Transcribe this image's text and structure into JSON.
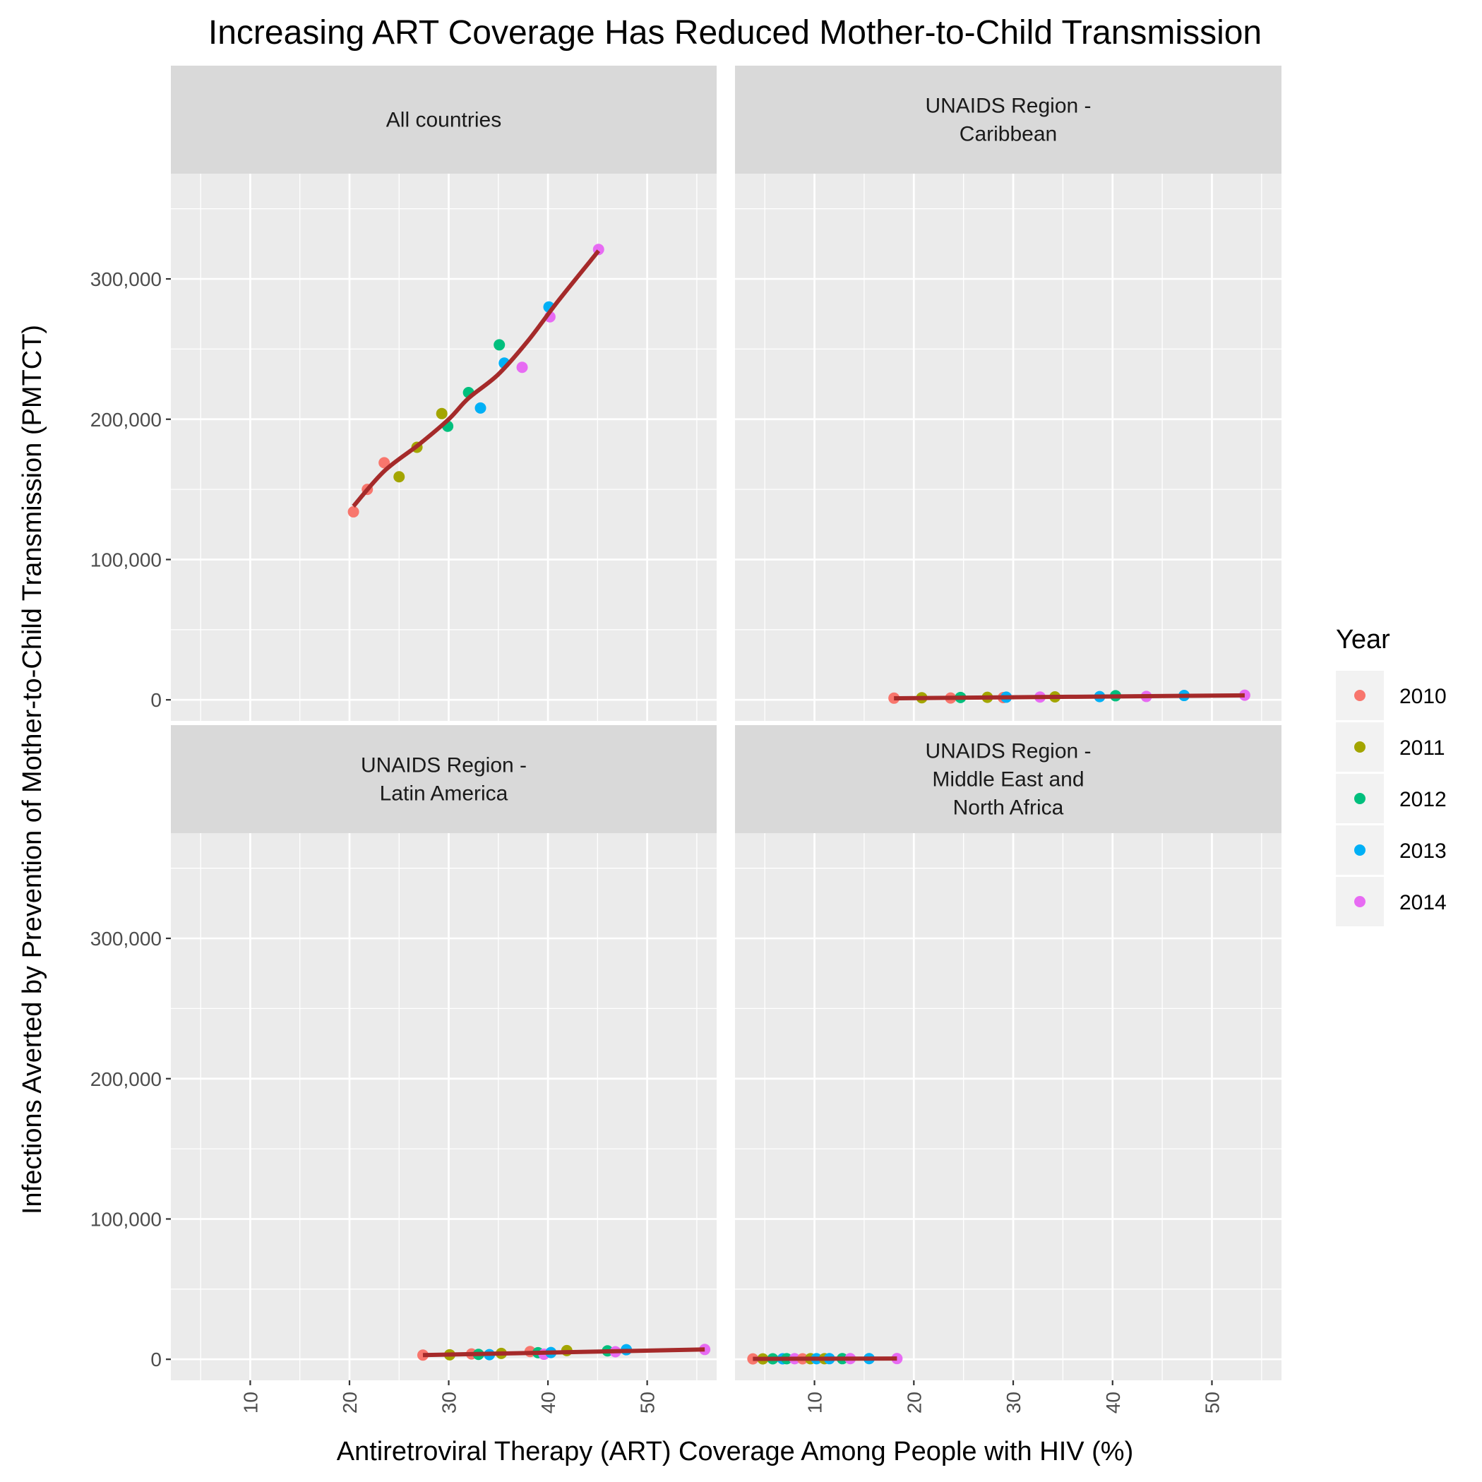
{
  "chart_data": {
    "type": "scatter",
    "title": "Increasing ART Coverage Has Reduced Mother-to-Child Transmission",
    "xlabel": "Antiretroviral Therapy (ART) Coverage Among People with HIV (%)",
    "ylabel": "Infections Averted by Prevention of Mother-to-Child Transmission (PMTCT)",
    "xlim": [
      2,
      57
    ],
    "ylim": [
      -15000,
      375000
    ],
    "x_ticks": [
      10,
      20,
      30,
      40,
      50
    ],
    "y_ticks": [
      0,
      100000,
      200000,
      300000
    ],
    "y_tick_labels": [
      "0",
      "100,000",
      "200,000",
      "300,000"
    ],
    "grid": true,
    "legend": {
      "title": "Year",
      "position": "right",
      "entries": [
        {
          "label": "2010",
          "color": "#F8766D"
        },
        {
          "label": "2011",
          "color": "#A3A500"
        },
        {
          "label": "2012",
          "color": "#00BF7D"
        },
        {
          "label": "2013",
          "color": "#00B0F6"
        },
        {
          "label": "2014",
          "color": "#E76BF3"
        }
      ]
    },
    "trend_color": "#A52A2A",
    "panels": [
      {
        "label": "All countries",
        "points": [
          {
            "year": "2010",
            "x": 20.4,
            "y": 134000
          },
          {
            "year": "2010",
            "x": 21.8,
            "y": 150000
          },
          {
            "year": "2010",
            "x": 23.5,
            "y": 169000
          },
          {
            "year": "2011",
            "x": 25.0,
            "y": 159000
          },
          {
            "year": "2011",
            "x": 26.8,
            "y": 180000
          },
          {
            "year": "2011",
            "x": 29.3,
            "y": 204000
          },
          {
            "year": "2012",
            "x": 29.9,
            "y": 195000
          },
          {
            "year": "2012",
            "x": 32.0,
            "y": 219000
          },
          {
            "year": "2013",
            "x": 33.2,
            "y": 208000
          },
          {
            "year": "2012",
            "x": 35.1,
            "y": 253000
          },
          {
            "year": "2013",
            "x": 35.6,
            "y": 240000
          },
          {
            "year": "2014",
            "x": 37.4,
            "y": 237000
          },
          {
            "year": "2013",
            "x": 40.1,
            "y": 280000
          },
          {
            "year": "2014",
            "x": 40.2,
            "y": 273000
          },
          {
            "year": "2014",
            "x": 45.1,
            "y": 321000
          }
        ],
        "trend": [
          [
            20.4,
            138000
          ],
          [
            23.5,
            163000
          ],
          [
            27,
            182000
          ],
          [
            30,
            200000
          ],
          [
            32,
            215000
          ],
          [
            35,
            232000
          ],
          [
            38,
            256000
          ],
          [
            41,
            284000
          ],
          [
            45.1,
            320000
          ]
        ]
      },
      {
        "label": "UNAIDS Region -\nCaribbean",
        "points": [
          {
            "year": "2010",
            "x": 18.0,
            "y": 1200
          },
          {
            "year": "2011",
            "x": 20.8,
            "y": 1500
          },
          {
            "year": "2010",
            "x": 23.7,
            "y": 1300
          },
          {
            "year": "2012",
            "x": 24.7,
            "y": 1700
          },
          {
            "year": "2011",
            "x": 27.4,
            "y": 1800
          },
          {
            "year": "2010",
            "x": 29.0,
            "y": 1600
          },
          {
            "year": "2013",
            "x": 29.3,
            "y": 1900
          },
          {
            "year": "2014",
            "x": 32.7,
            "y": 2000
          },
          {
            "year": "2011",
            "x": 34.2,
            "y": 2100
          },
          {
            "year": "2013",
            "x": 38.7,
            "y": 2300
          },
          {
            "year": "2012",
            "x": 40.3,
            "y": 2900
          },
          {
            "year": "2014",
            "x": 43.4,
            "y": 2400
          },
          {
            "year": "2013",
            "x": 47.2,
            "y": 3100
          },
          {
            "year": "2014",
            "x": 53.3,
            "y": 3300
          }
        ],
        "trend": [
          [
            18.0,
            1100
          ],
          [
            53.3,
            3200
          ]
        ]
      },
      {
        "label": "UNAIDS Region -\nLatin America",
        "points": [
          {
            "year": "2010",
            "x": 27.4,
            "y": 3000
          },
          {
            "year": "2011",
            "x": 30.1,
            "y": 3200
          },
          {
            "year": "2010",
            "x": 32.3,
            "y": 3800
          },
          {
            "year": "2012",
            "x": 33.0,
            "y": 3500
          },
          {
            "year": "2013",
            "x": 34.1,
            "y": 3300
          },
          {
            "year": "2011",
            "x": 35.3,
            "y": 4200
          },
          {
            "year": "2010",
            "x": 38.2,
            "y": 5500
          },
          {
            "year": "2012",
            "x": 39.0,
            "y": 4700
          },
          {
            "year": "2014",
            "x": 39.6,
            "y": 3600
          },
          {
            "year": "2013",
            "x": 40.3,
            "y": 4800
          },
          {
            "year": "2011",
            "x": 41.9,
            "y": 6200
          },
          {
            "year": "2012",
            "x": 46.0,
            "y": 6000
          },
          {
            "year": "2014",
            "x": 46.8,
            "y": 5400
          },
          {
            "year": "2013",
            "x": 47.9,
            "y": 6800
          },
          {
            "year": "2014",
            "x": 55.8,
            "y": 7000
          }
        ],
        "trend": [
          [
            27.4,
            3000
          ],
          [
            55.8,
            7000
          ]
        ]
      },
      {
        "label": "UNAIDS Region -\nMiddle East and\nNorth Africa",
        "points": [
          {
            "year": "2010",
            "x": 3.8,
            "y": 300
          },
          {
            "year": "2011",
            "x": 4.8,
            "y": 300
          },
          {
            "year": "2012",
            "x": 5.8,
            "y": 350
          },
          {
            "year": "2013",
            "x": 6.8,
            "y": 350
          },
          {
            "year": "2012",
            "x": 7.2,
            "y": 400
          },
          {
            "year": "2014",
            "x": 8.0,
            "y": 400
          },
          {
            "year": "2010",
            "x": 8.8,
            "y": 350
          },
          {
            "year": "2011",
            "x": 9.6,
            "y": 400
          },
          {
            "year": "2013",
            "x": 10.2,
            "y": 400
          },
          {
            "year": "2011",
            "x": 11.0,
            "y": 420
          },
          {
            "year": "2013",
            "x": 11.5,
            "y": 450
          },
          {
            "year": "2012",
            "x": 12.8,
            "y": 450
          },
          {
            "year": "2014",
            "x": 13.6,
            "y": 460
          },
          {
            "year": "2013",
            "x": 15.5,
            "y": 480
          },
          {
            "year": "2014",
            "x": 18.3,
            "y": 520
          }
        ],
        "trend": [
          [
            3.8,
            300
          ],
          [
            18.3,
            520
          ]
        ]
      }
    ]
  }
}
